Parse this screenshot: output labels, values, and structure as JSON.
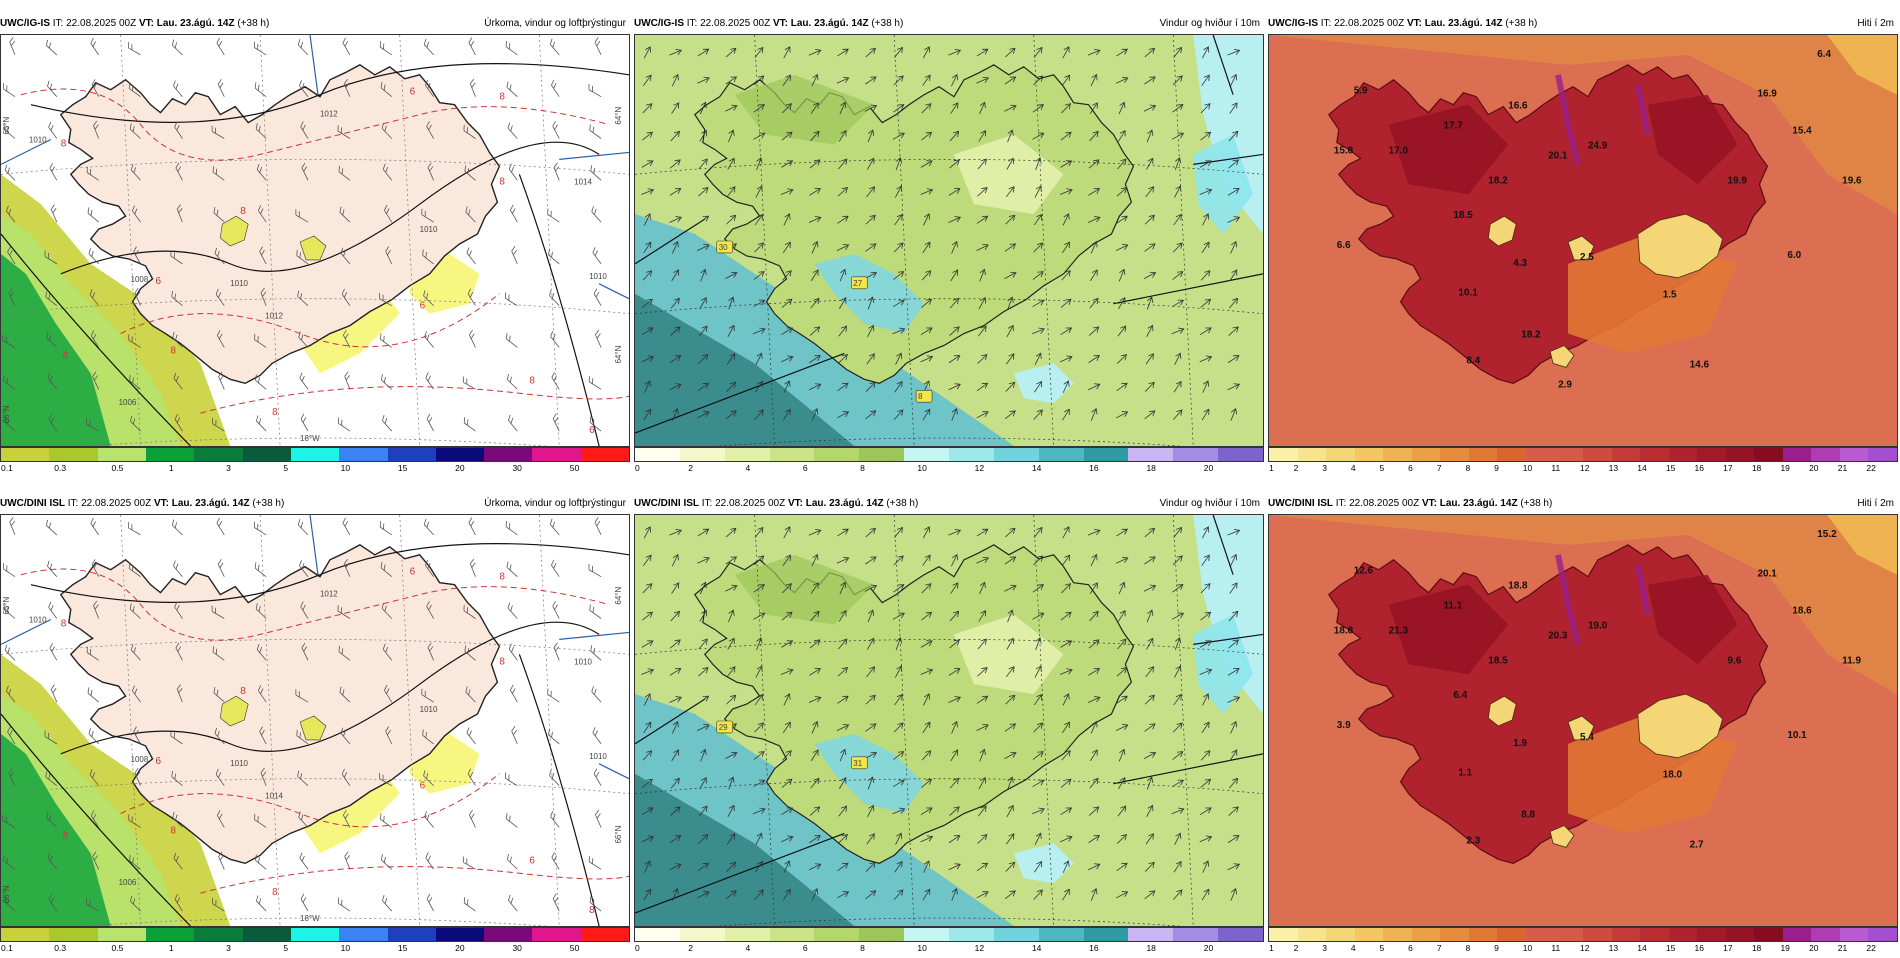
{
  "panels": [
    {
      "model": "UWC/IG-IS",
      "it": "IT: 22.08.2025 00Z",
      "vt_label": "VT:",
      "vt": "Lau. 23.ágú. 14Z",
      "lead": "(+38 h)",
      "title": "Úrkoma, vindur og loftþrýstingur",
      "type": "precip",
      "pressure_labels": [
        "1010",
        "1012",
        "1012",
        "1014",
        "1010",
        "1010",
        "1008",
        "1006",
        "1010"
      ],
      "precip_labels": [
        "8",
        "8",
        "6",
        "6",
        "8",
        "8",
        "8",
        "6",
        "8",
        "6",
        "8",
        "6"
      ],
      "grid_labels": [
        "64°N",
        "64°N",
        "65°N",
        "66°N",
        "18°W"
      ],
      "cbar_ticks": [
        "0.1",
        "0.3",
        "0.5",
        "1",
        "3",
        "5",
        "10",
        "15",
        "20",
        "30",
        "50"
      ]
    },
    {
      "model": "UWC/IG-IS",
      "it": "IT: 22.08.2025 00Z",
      "vt_label": "VT:",
      "vt": "Lau. 23.ágú. 14Z",
      "lead": "(+38 h)",
      "title": "Vindur og hviður í 10m",
      "type": "wind",
      "station_labels": [
        "30",
        "27",
        "8"
      ],
      "cbar_ticks": [
        "0",
        "2",
        "4",
        "6",
        "8",
        "10",
        "12",
        "14",
        "16",
        "18",
        "20"
      ]
    },
    {
      "model": "UWC/IG-IS",
      "it": "IT: 22.08.2025 00Z",
      "vt_label": "VT:",
      "vt": "Lau. 23.ágú. 14Z",
      "lead": "(+38 h)",
      "title": "Hiti í 2m",
      "type": "temp",
      "temp_labels": [
        "6.4",
        "5.9",
        "16.6",
        "16.9",
        "17.7",
        "15.8",
        "17.0",
        "20.1",
        "24.9",
        "15.4",
        "18.2",
        "19.9",
        "19.6",
        "18.5",
        "6.6",
        "4.3",
        "2.5",
        "6.0",
        "10.1",
        "1.5",
        "18.2",
        "8.4",
        "14.6",
        "2.9"
      ],
      "cbar_ticks": [
        "1",
        "2",
        "3",
        "4",
        "5",
        "6",
        "7",
        "8",
        "9",
        "10",
        "11",
        "12",
        "13",
        "14",
        "15",
        "16",
        "17",
        "18",
        "19",
        "20",
        "21",
        "22"
      ]
    },
    {
      "model": "UWC/DINI ISL",
      "it": "IT: 22.08.2025 00Z",
      "vt_label": "VT:",
      "vt": "Lau. 23.ágú. 14Z",
      "lead": "(+38 h)",
      "title": "Úrkoma, vindur og loftþrýstingur",
      "type": "precip",
      "pressure_labels": [
        "1010",
        "1012",
        "1014",
        "1010",
        "1010",
        "1010",
        "1008",
        "1006",
        "1010"
      ],
      "precip_labels": [
        "8",
        "8",
        "6",
        "8",
        "8",
        "6",
        "8",
        "6",
        "8",
        "8",
        "8",
        "6"
      ],
      "grid_labels": [
        "64°N",
        "66°N",
        "65°N",
        "66°N",
        "18°W"
      ],
      "cbar_ticks": [
        "0.1",
        "0.3",
        "0.5",
        "1",
        "3",
        "5",
        "10",
        "15",
        "20",
        "30",
        "50"
      ]
    },
    {
      "model": "UWC/DINI ISL",
      "it": "IT: 22.08.2025 00Z",
      "vt_label": "VT:",
      "vt": "Lau. 23.ágú. 14Z",
      "lead": "(+38 h)",
      "title": "Vindur og hviður í 10m",
      "type": "wind",
      "station_labels": [
        "29",
        "31"
      ],
      "cbar_ticks": [
        "0",
        "2",
        "4",
        "6",
        "8",
        "10",
        "12",
        "14",
        "16",
        "18",
        "20"
      ]
    },
    {
      "model": "UWC/DINI ISL",
      "it": "IT: 22.08.2025 00Z",
      "vt_label": "VT:",
      "vt": "Lau. 23.ágú. 14Z",
      "lead": "(+38 h)",
      "title": "Hiti í 2m",
      "type": "temp",
      "temp_labels": [
        "15.2",
        "12.6",
        "18.8",
        "20.1",
        "11.1",
        "18.8",
        "21.3",
        "20.3",
        "19.0",
        "18.6",
        "18.5",
        "9.6",
        "11.9",
        "6.4",
        "3.9",
        "1.9",
        "5.4",
        "10.1",
        "1.1",
        "18.0",
        "8.8",
        "2.3",
        "2.7"
      ],
      "cbar_ticks": [
        "1",
        "2",
        "3",
        "4",
        "5",
        "6",
        "7",
        "8",
        "9",
        "10",
        "11",
        "12",
        "13",
        "14",
        "15",
        "16",
        "17",
        "18",
        "19",
        "20",
        "21",
        "22"
      ]
    }
  ],
  "colorbars": {
    "precip": [
      "#c9d23a",
      "#a8c82c",
      "#b7e36e",
      "#0aa13b",
      "#0a7c3c",
      "#0a5a3c",
      "#1ef4e6",
      "#3b82f6",
      "#1f3fbf",
      "#0a0a7a",
      "#7a0a7a",
      "#e0168c",
      "#ff1a1a"
    ],
    "wind": [
      "#fffff0",
      "#f2f7cc",
      "#e2f0a8",
      "#cde38a",
      "#b5d56f",
      "#9cc65a",
      "#c6f6f4",
      "#9ee8ec",
      "#72d3dd",
      "#4fb7c2",
      "#2f9aa4",
      "#c8b6f0",
      "#a48ce6",
      "#7c64cc"
    ],
    "temp": [
      "#fbf0a8",
      "#f8e48e",
      "#f5d676",
      "#f2c663",
      "#efb352",
      "#eba047",
      "#e78c3d",
      "#e27836",
      "#db6530",
      "#d85b4b",
      "#d65a4a",
      "#d04a41",
      "#c63b39",
      "#bb2d32",
      "#b0222d",
      "#a31927",
      "#951325",
      "#870c22",
      "#9a1f8d",
      "#ad3cb5",
      "#b85bd0",
      "#a34fd0"
    ]
  },
  "map_colors": {
    "land_precip": "#fbe8dc",
    "sea": "#ffffff",
    "land_line": "#222222"
  }
}
